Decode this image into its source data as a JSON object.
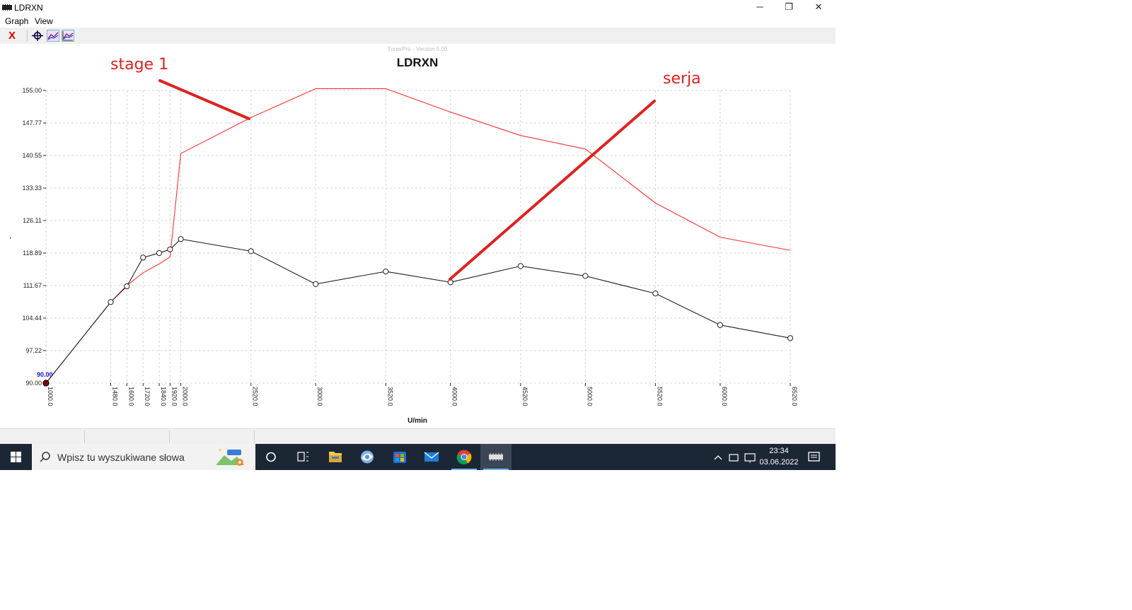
{
  "window": {
    "title": "LDRXN",
    "minimize_glyph": "─",
    "maximize_glyph": "❐",
    "close_glyph": "✕"
  },
  "menu": {
    "items": [
      "Graph",
      "View"
    ]
  },
  "toolbar": {
    "close_glyph": "X",
    "icons": [
      "crosshair-icon",
      "graph-trace-icon",
      "graph-compare-icon"
    ]
  },
  "graph": {
    "version_label": "TunerPro - Version 5.00",
    "title": "LDRXN",
    "x_axis_label": "U/min",
    "start_marker_label": "90.00"
  },
  "annotations": {
    "stage_label": "stage 1",
    "stock_label": "serja",
    "color": "#e02020"
  },
  "chart_data": {
    "type": "line",
    "x": [
      1000,
      1480,
      1600,
      1720,
      1840,
      1920,
      2000,
      2520,
      3000,
      3520,
      4000,
      4520,
      5000,
      5520,
      6000,
      6520
    ],
    "x_tick_labels": [
      "1000.0",
      "1480.0",
      "1600.0",
      "1720.0",
      "1840.0",
      "1920.0",
      "2000.0",
      "2520.0",
      "3000.0",
      "3520.0",
      "4000.0",
      "4520.0",
      "5000.0",
      "5520.0",
      "6000.0",
      "6520.0"
    ],
    "y_tick_values": [
      90.0,
      97.22,
      104.44,
      111.67,
      118.89,
      126.11,
      133.33,
      140.55,
      147.77,
      155.0
    ],
    "y_tick_labels": [
      "90.00",
      "97.22",
      "104.44",
      "111.67",
      "118.89",
      "126.11",
      "133.33",
      "140.55",
      "147.77",
      "155.00"
    ],
    "ylim": [
      90,
      155
    ],
    "xlim": [
      1000,
      6520
    ],
    "grid": true,
    "series": [
      {
        "color": "#ff3030",
        "values": [
          90.0,
          108.0,
          111.7,
          114.5,
          116.5,
          118.0,
          141.0,
          149.0,
          155.4,
          155.4,
          150.2,
          145.0,
          142.0,
          130.0,
          122.4,
          119.5
        ]
      },
      {
        "color": "#222222",
        "values": [
          90.0,
          108.0,
          111.5,
          117.9,
          118.9,
          119.7,
          122.0,
          119.3,
          112.0,
          114.8,
          112.4,
          116.0,
          113.8,
          109.9,
          102.9,
          100.0
        ]
      }
    ]
  },
  "taskbar": {
    "search_placeholder": "Wpisz tu wyszukiwane słowa",
    "time": "23:34",
    "date": "03.06.2022"
  }
}
